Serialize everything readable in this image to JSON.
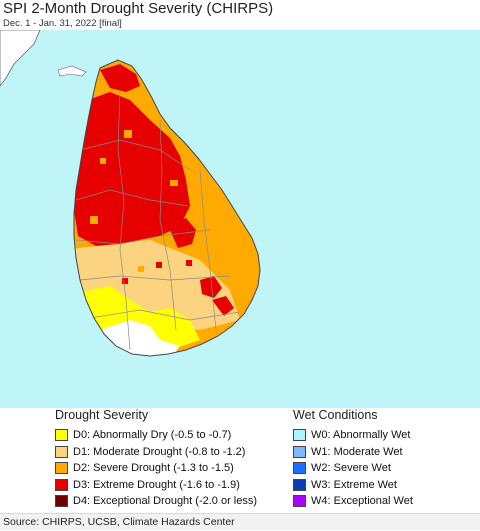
{
  "title": "SPI 2-Month Drought Severity (CHIRPS)",
  "subtitle": "Dec. 1 - Jan. 31, 2022 [final]",
  "map": {
    "region": "Sri Lanka",
    "colors": {
      "ocean": "#bff5f7",
      "neighbor_land": "#ffffff",
      "outline": "#444444",
      "district_line": "#8a8a8a"
    }
  },
  "legend": {
    "drought_title": "Drought Severity",
    "drought_items": [
      {
        "code": "D0",
        "label": "D0: Abnormally Dry (-0.5 to -0.7)",
        "color": "#ffff00"
      },
      {
        "code": "D1",
        "label": "D1: Moderate Drought (-0.8 to -1.2)",
        "color": "#fcd37f"
      },
      {
        "code": "D2",
        "label": "D2: Severe Drought (-1.3 to -1.5)",
        "color": "#ffaa00"
      },
      {
        "code": "D3",
        "label": "D3: Extreme Drought (-1.6 to -1.9)",
        "color": "#e60000"
      },
      {
        "code": "D4",
        "label": "D4: Exceptional Drought (-2.0 or less)",
        "color": "#730000"
      }
    ],
    "wet_title": "Wet Conditions",
    "wet_items": [
      {
        "code": "W0",
        "label": "W0: Abnormally Wet",
        "color": "#aaf5ff"
      },
      {
        "code": "W1",
        "label": "W1: Moderate Wet",
        "color": "#7eb6ff"
      },
      {
        "code": "W2",
        "label": "W2: Severe Wet",
        "color": "#1e6eff"
      },
      {
        "code": "W3",
        "label": "W3: Extreme Wet",
        "color": "#0a3cb4"
      },
      {
        "code": "W4",
        "label": "W4: Exceptional Wet",
        "color": "#aa00ff"
      }
    ]
  },
  "source": "Source: CHIRPS, UCSB, Climate Hazards Center"
}
